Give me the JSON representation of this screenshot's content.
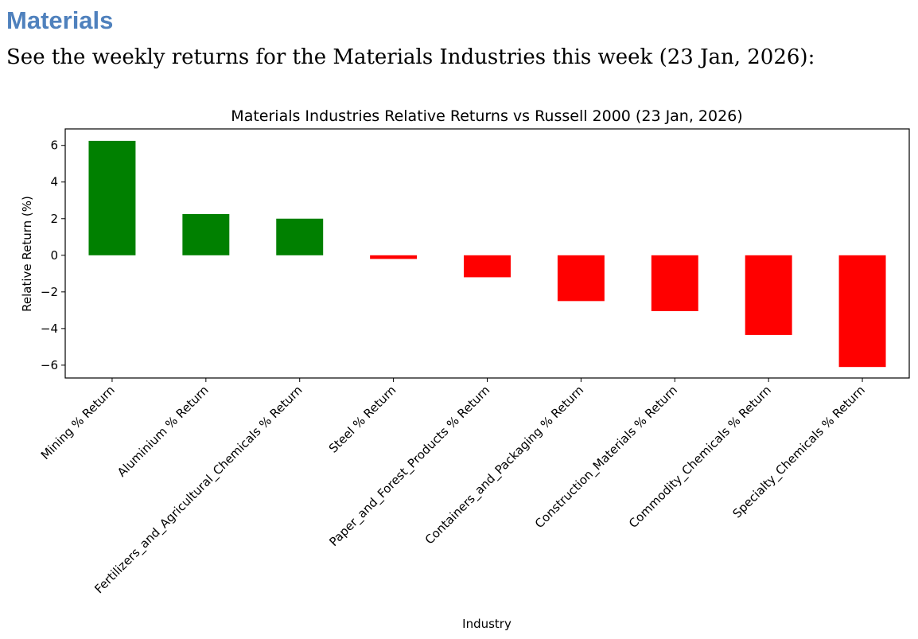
{
  "document": {
    "heading": "Materials",
    "intro": "See the weekly returns for the Materials Industries this week (23 Jan, 2026):"
  },
  "chart_data": {
    "type": "bar",
    "title": "Materials Industries Relative Returns vs Russell 2000 (23 Jan, 2026)",
    "xlabel": "Industry",
    "ylabel": "Relative Return (%)",
    "ylim": [
      -6.7,
      6.9
    ],
    "yticks": [
      6,
      4,
      2,
      0,
      -2,
      -4,
      -6
    ],
    "ytick_labels": [
      "6",
      "4",
      "2",
      "0",
      "−2",
      "−4",
      "−6"
    ],
    "positive_color": "#008000",
    "negative_color": "#ff0000",
    "categories": [
      "Mining % Return",
      "Aluminium % Return",
      "Fertilizers_and_Agricultural_Chemicals % Return",
      "Steel % Return",
      "Paper_and_Forest_Products % Return",
      "Containers_and_Packaging % Return",
      "Construction_Materials % Return",
      "Commodity_Chemicals % Return",
      "Specialty_Chemicals % Return"
    ],
    "values": [
      6.25,
      2.25,
      2.0,
      -0.2,
      -1.2,
      -2.5,
      -3.05,
      -4.35,
      -6.1
    ]
  }
}
